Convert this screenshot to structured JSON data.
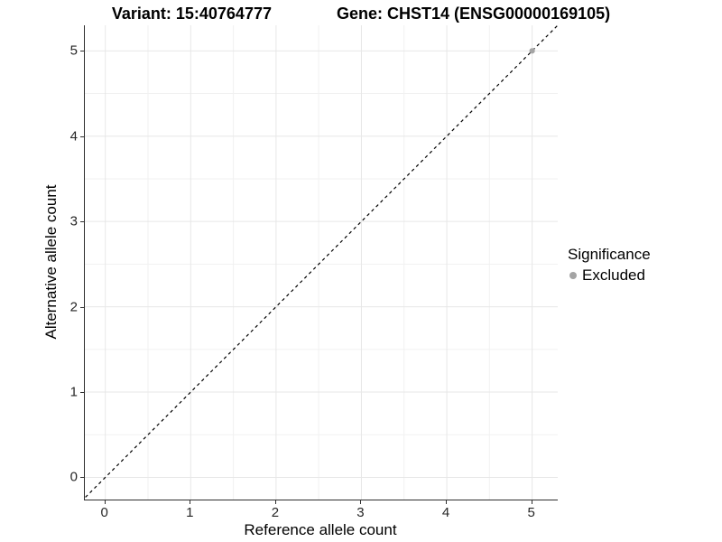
{
  "header": {
    "variant_title": "Variant: 15:40764777",
    "gene_title": "Gene: CHST14 (ENSG00000169105)"
  },
  "chart_data": {
    "type": "scatter",
    "title": "Variant: 15:40764777   Gene: CHST14 (ENSG00000169105)",
    "xlabel": "Reference allele count",
    "ylabel": "Alternative allele count",
    "xlim": [
      -0.24,
      5.3
    ],
    "ylim": [
      -0.26,
      5.3
    ],
    "x_ticks": [
      0,
      1,
      2,
      3,
      4,
      5
    ],
    "y_ticks": [
      0,
      1,
      2,
      3,
      4,
      5
    ],
    "minor_ticks": [
      0.5,
      1.5,
      2.5,
      3.5,
      4.5
    ],
    "grid": "major and minor, light gray on white",
    "series": [
      {
        "name": "Excluded",
        "marker": "circle",
        "color": "#a4a4a4",
        "points": [
          {
            "x": 5,
            "y": 5
          }
        ]
      }
    ],
    "reference_line": {
      "kind": "identity y=x",
      "style": "dashed",
      "color": "#000000"
    },
    "legend": {
      "position": "right",
      "title": "Significance",
      "entries": [
        {
          "label": "Excluded",
          "marker": "circle",
          "color": "#a4a4a4"
        }
      ]
    }
  },
  "colors": {
    "background": "#ffffff",
    "axis_line": "#2e2e2e",
    "tick_text": "#262626",
    "grid_major": "#e7e7e7",
    "grid_minor": "#f1f1f1",
    "excluded_point": "#a4a4a4",
    "dashed_line": "#000000"
  }
}
